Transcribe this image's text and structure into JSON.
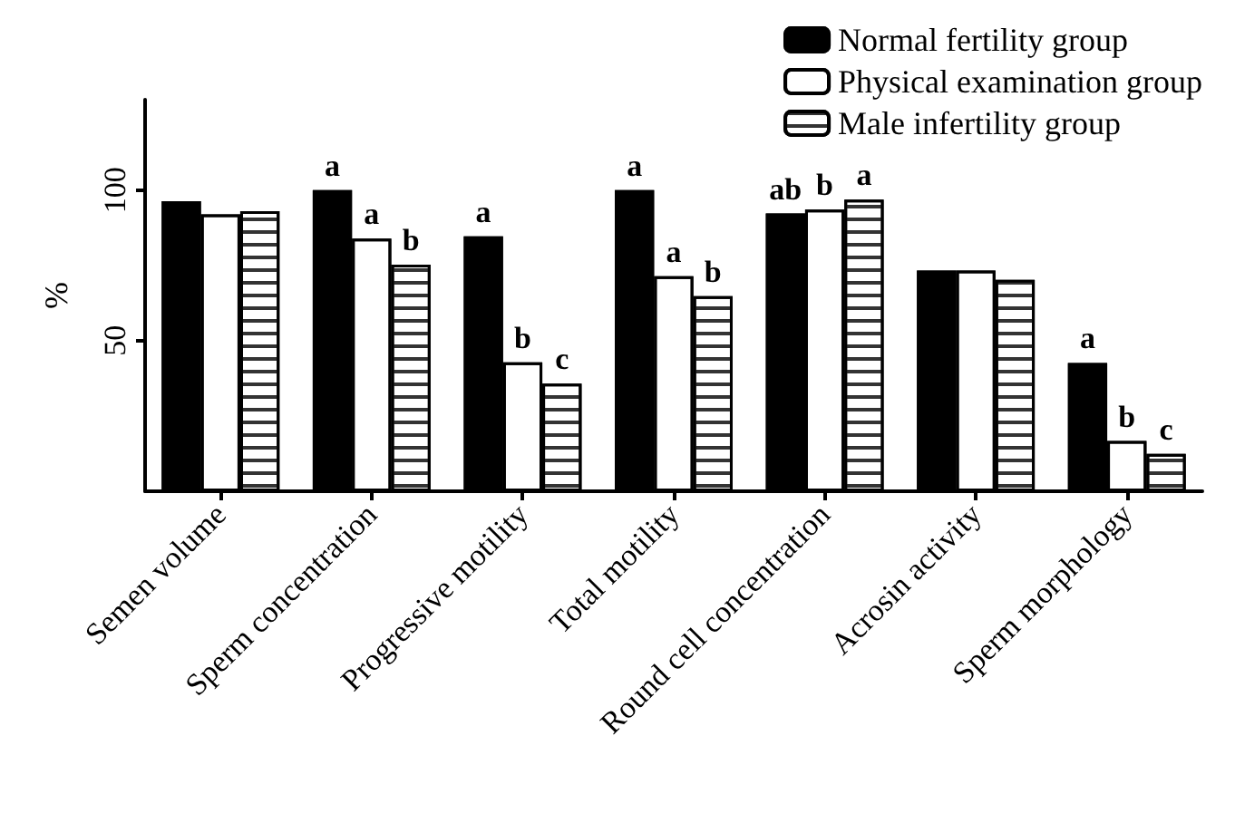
{
  "chart_data": {
    "type": "bar",
    "ylabel": "%",
    "categories": [
      "Semen volume",
      "Sperm concentration",
      "Progressive motility",
      "Total motility",
      "Round cell concentration",
      "Acrosin activity",
      "Sperm morphology"
    ],
    "series": [
      {
        "name": "Normal fertility group",
        "color": "#000000",
        "values": [
          96.3,
          100,
          84.6,
          100,
          92.2,
          73.3,
          42.6
        ],
        "value_labels": [
          null,
          "a",
          "a",
          "a",
          "ab",
          null,
          "a"
        ]
      },
      {
        "name": "Physical examination group",
        "color": "#ffffff",
        "values": [
          91.9,
          83.9,
          42.8,
          71.4,
          93.5,
          73.3,
          16.7
        ],
        "value_labels": [
          null,
          "a",
          "b",
          "a",
          "b",
          null,
          "b"
        ]
      },
      {
        "name": "Male infertility group",
        "color": "#ffffff",
        "values": [
          93.0,
          75.2,
          35.7,
          64.8,
          96.8,
          70.2,
          12.4
        ],
        "value_labels": [
          null,
          "b",
          "c",
          "b",
          "a",
          null,
          "c"
        ]
      }
    ],
    "ylim": [
      0,
      130
    ],
    "yticks": [
      50,
      100
    ],
    "grid": false,
    "legend": "top right"
  }
}
